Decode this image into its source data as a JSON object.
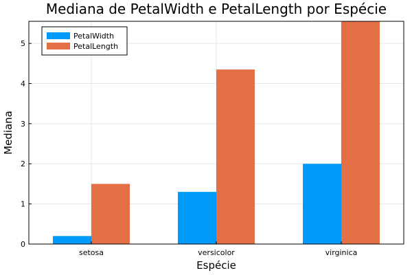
{
  "chart_data": {
    "type": "bar",
    "title": "Mediana de PetalWidth e PetalLength por Espécie",
    "xlabel": "Espécie",
    "ylabel": "Mediana",
    "categories": [
      "setosa",
      "versicolor",
      "virginica"
    ],
    "series": [
      {
        "name": "PetalWidth",
        "values": [
          0.2,
          1.3,
          2.0
        ],
        "color": "#009af9"
      },
      {
        "name": "PetalLength",
        "values": [
          1.5,
          4.35,
          5.55
        ],
        "color": "#e26f46"
      }
    ],
    "ylim": [
      0,
      5.55
    ],
    "yticks": [
      0,
      1,
      2,
      3,
      4,
      5
    ],
    "grid": true,
    "legend_position": "top-left"
  }
}
